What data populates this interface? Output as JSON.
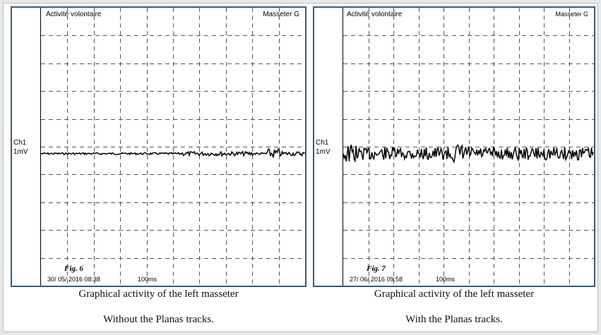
{
  "panels": [
    {
      "header_left": "Activité volontaire",
      "header_right": "Masseter G",
      "channel": "Ch1",
      "scale": "1mV",
      "fig_label": "Fig. 6",
      "date": "30/ 05/  2016   08:38",
      "timebase": "100ms",
      "caption_line1": "Graphical activity of the left masseter",
      "caption_line2": "Without the Planas tracks."
    },
    {
      "header_left": "Activité volontaire",
      "header_right": "Masseter G",
      "channel": "Ch1",
      "scale": "1mV",
      "fig_label": "Fig. 7",
      "date": "27/  06/  2016   09:58",
      "timebase": "100ms",
      "caption_line1": "Graphical activity of the left  masseter",
      "caption_line2": "With the Planas tracks."
    }
  ],
  "colors": {
    "panel_border": "#3a5a78",
    "grid": "#555555",
    "trace": "#000000"
  }
}
